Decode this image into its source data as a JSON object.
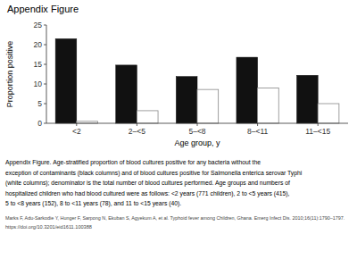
{
  "chart_data": {
    "type": "bar",
    "title": "Appendix Figure",
    "categories": [
      "<2",
      "2–<5",
      "5–<8",
      "8–<11",
      "11–<15"
    ],
    "series": [
      {
        "color": "#111111",
        "values": [
          21.5,
          14.8,
          11.9,
          16.8,
          12.2
        ]
      },
      {
        "color": "#ffffff",
        "values": [
          0.5,
          3.2,
          8.6,
          9.0,
          5.0
        ]
      }
    ],
    "xlabel": "Age group, y",
    "ylabel": "Proportion positive",
    "ylim": [
      0,
      25
    ],
    "yticks": [
      0,
      5,
      10,
      15,
      20,
      25
    ],
    "grid": false,
    "annotations": [
      "Appendix Figure. Age-stratified proportion of blood cultures positive for any bacteria without the",
      "exception of contaminants (black columns) and of blood cultures positive for Salmonella enterica serovar Typhi",
      "(white columns); denominator is the total number of blood cultures performed. Age groups and numbers of",
      "hospitalized children who had blood cultured were as follows: <2 years (771 children), 2 to <5 years (415),",
      "5 to <8 years (152), 8 to <11 years (78), and 11 to <15 years (40).",
      "Marks F, Adu-Sarkodie Y, Hunger F, Sarpong N, Ekuban S, Agyekum A, et al. Typhoid fever among Children, Ghana. Emerg Infect Dis. 2010;16(11):1790–1797.",
      "https://doi.org/10.3201/eid1611.100388"
    ]
  }
}
